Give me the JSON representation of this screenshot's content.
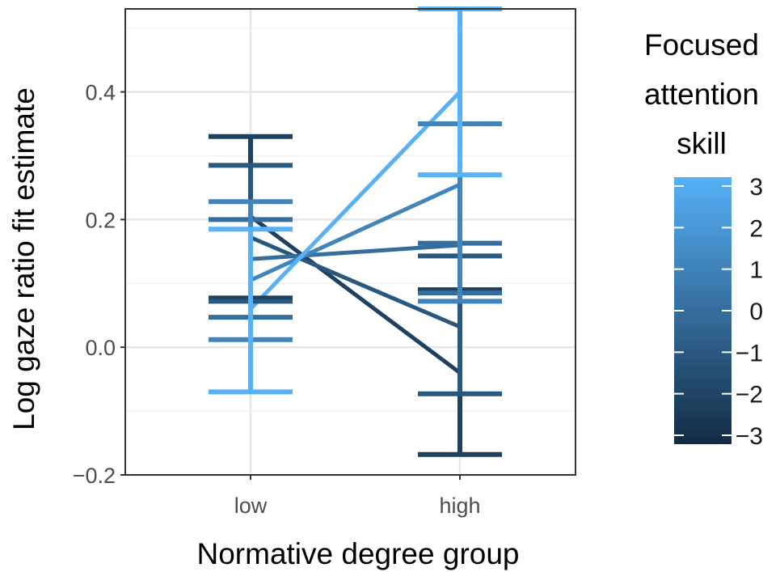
{
  "chart_data": {
    "type": "line",
    "xlabel": "Normative degree group",
    "ylabel": "Log gaze ratio fit estimate",
    "categories": [
      "low",
      "high"
    ],
    "ylim": [
      -0.2,
      0.53
    ],
    "y_ticks": [
      -0.2,
      0.0,
      0.2,
      0.4
    ],
    "y_tick_labels": [
      "−0.2",
      "0.0",
      "0.2",
      "0.4"
    ],
    "grid": true,
    "legend": {
      "title_lines": [
        "Focused",
        "attention",
        "skill"
      ],
      "placement": "right",
      "type": "colorbar",
      "range": [
        -3,
        3
      ],
      "ticks": [
        3,
        2,
        1,
        0,
        -1,
        -2,
        -3
      ],
      "tick_labels": [
        "3",
        "2",
        "1",
        "0",
        "−1",
        "−2",
        "−3"
      ],
      "color_low": "#132B43",
      "color_high": "#56B1F7"
    },
    "series": [
      {
        "color_value": 3,
        "values": [
          0.06,
          0.4
        ],
        "ci_low": [
          -0.07,
          0.27
        ],
        "ci_high": [
          0.185,
          0.53
        ]
      },
      {
        "color_value": 1,
        "values": [
          0.105,
          0.255
        ],
        "ci_low": [
          0.012,
          0.072
        ],
        "ci_high": [
          0.228,
          0.35
        ]
      },
      {
        "color_value": 0,
        "values": [
          0.138,
          0.16
        ],
        "ci_low": [
          0.047,
          0.085
        ],
        "ci_high": [
          0.2,
          0.163
        ]
      },
      {
        "color_value": -1,
        "values": [
          0.172,
          0.032
        ],
        "ci_low": [
          0.072,
          -0.073
        ],
        "ci_high": [
          0.285,
          0.143
        ]
      },
      {
        "color_value": -2,
        "values": [
          0.205,
          -0.04
        ],
        "ci_low": [
          0.077,
          -0.168
        ],
        "ci_high": [
          0.33,
          0.09
        ]
      }
    ]
  }
}
